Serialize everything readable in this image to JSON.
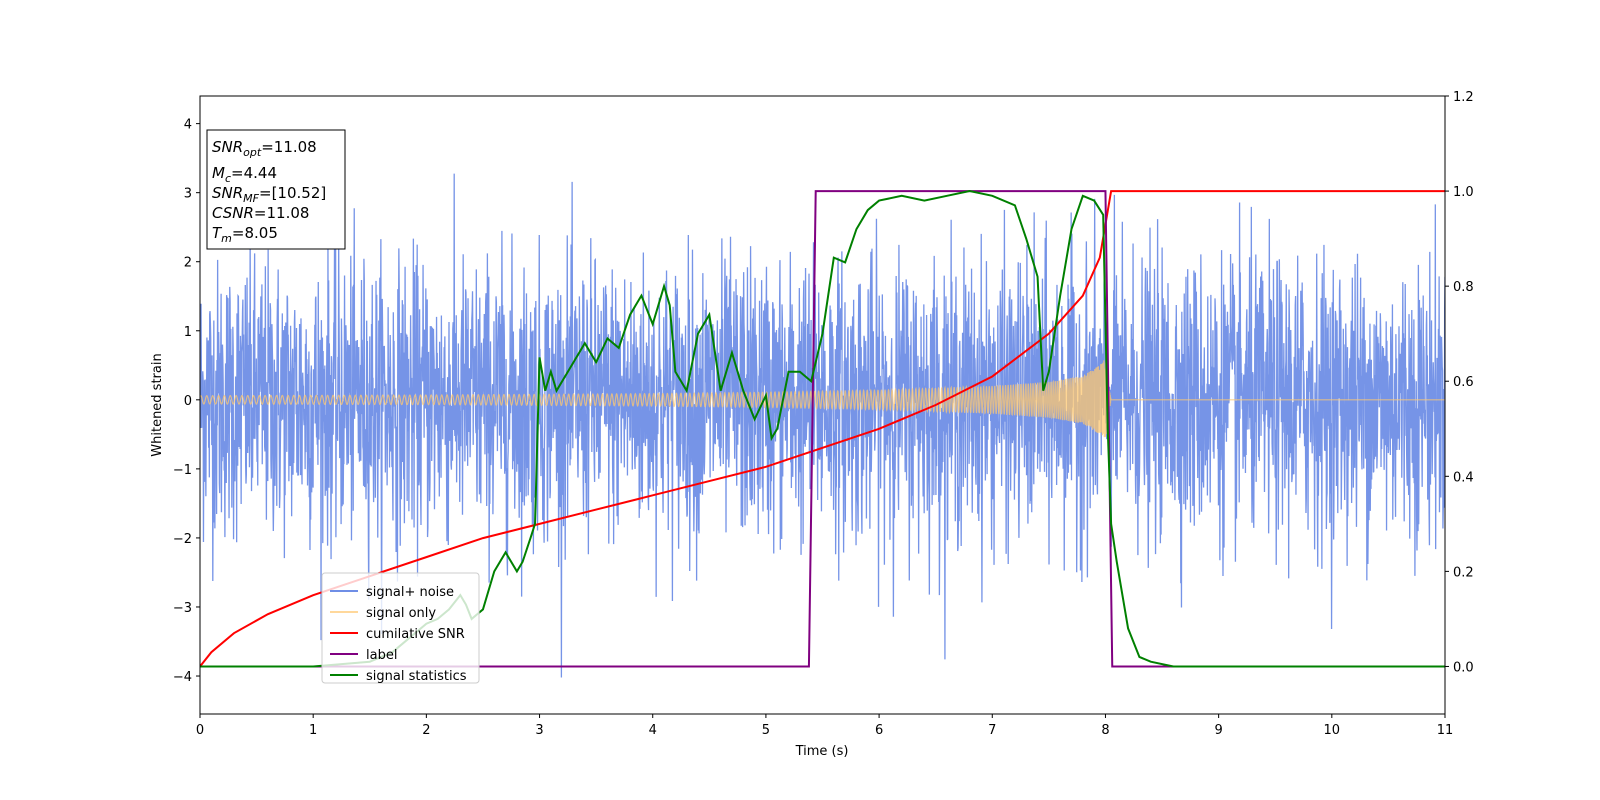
{
  "chart_data": {
    "type": "line",
    "title": "",
    "xlabel": "Time (s)",
    "ylabel": "Whitened strain",
    "y2label": "",
    "xlim": [
      0,
      11
    ],
    "ylim": [
      -4.55,
      4.4
    ],
    "y2lim": [
      -0.1,
      1.2
    ],
    "grid": false,
    "legend_position": "lower-left",
    "x_ticks": [
      0,
      1,
      2,
      3,
      4,
      5,
      6,
      7,
      8,
      9,
      10,
      11
    ],
    "y_ticks": [
      -4,
      -3,
      -2,
      -1,
      0,
      1,
      2,
      3,
      4
    ],
    "y2_ticks": [
      0.0,
      0.2,
      0.4,
      0.6,
      0.8,
      1.0,
      1.2
    ],
    "x_tick_labels": [
      "0",
      "1",
      "2",
      "3",
      "4",
      "5",
      "6",
      "7",
      "8",
      "9",
      "10",
      "11"
    ],
    "y_tick_labels": [
      "−4",
      "−3",
      "−2",
      "−1",
      "0",
      "1",
      "2",
      "3",
      "4"
    ],
    "y2_tick_labels": [
      "0.0",
      "0.2",
      "0.4",
      "0.6",
      "0.8",
      "1.0",
      "1.2"
    ],
    "colors": {
      "noise": "#6f8ee6",
      "signal": "#ffc870",
      "snr": "#ff0000",
      "label": "#800080",
      "stat": "#008000"
    },
    "legend": [
      {
        "key": "noise",
        "label": "signal+ noise"
      },
      {
        "key": "signal",
        "label": "signal only"
      },
      {
        "key": "snr",
        "label": "cumilative SNR"
      },
      {
        "key": "label",
        "label": "label"
      },
      {
        "key": "stat",
        "label": "signal statistics"
      }
    ],
    "annotation": {
      "snr_opt_base": "SNR",
      "snr_opt_sub": "opt",
      "snr_opt_value": "=11.08",
      "mc_base": "M",
      "mc_sub": "c",
      "mc_value": "=4.44",
      "snr_mf_base": "SNR",
      "snr_mf_sub": "MF",
      "snr_mf_value": "=[10.52]",
      "csnr_base": "CSNR",
      "csnr_value": "=11.08",
      "tm_base": "T",
      "tm_sub": "m",
      "tm_value": "=8.05"
    },
    "series": [
      {
        "name": "signal+ noise",
        "axis": "left",
        "description_range": [
          -4.15,
          4.0
        ],
        "noise_sigma": 1.0,
        "x_range": [
          0,
          11
        ]
      },
      {
        "name": "signal only",
        "axis": "left",
        "envelope_x": [
          0,
          1,
          2,
          3,
          4,
          5,
          6,
          7,
          7.5,
          7.8,
          7.95,
          8.0,
          8.02,
          8.05
        ],
        "envelope_y": [
          0.06,
          0.065,
          0.07,
          0.08,
          0.09,
          0.11,
          0.14,
          0.2,
          0.26,
          0.35,
          0.5,
          0.6,
          0.3,
          0.0
        ]
      },
      {
        "name": "cumilative SNR",
        "axis": "right",
        "x": [
          0,
          0.1,
          0.3,
          0.6,
          1.0,
          1.5,
          2.0,
          2.5,
          3.0,
          3.5,
          4.0,
          4.5,
          5.0,
          5.5,
          6.0,
          6.5,
          7.0,
          7.5,
          7.8,
          7.95,
          8.05,
          8.06,
          11
        ],
        "y": [
          0.0,
          0.03,
          0.07,
          0.11,
          0.15,
          0.19,
          0.23,
          0.27,
          0.3,
          0.33,
          0.36,
          0.39,
          0.42,
          0.46,
          0.5,
          0.55,
          0.61,
          0.7,
          0.78,
          0.86,
          1.0,
          1.0,
          1.0
        ]
      },
      {
        "name": "label",
        "axis": "right",
        "x": [
          0,
          5.38,
          5.44,
          8.0,
          8.06,
          11
        ],
        "y": [
          0,
          0,
          1,
          1,
          0,
          0
        ]
      },
      {
        "name": "signal statistics",
        "axis": "right",
        "x": [
          0,
          0.5,
          1.0,
          1.5,
          1.7,
          1.85,
          2.0,
          2.1,
          2.2,
          2.3,
          2.35,
          2.4,
          2.5,
          2.6,
          2.7,
          2.8,
          2.85,
          2.92,
          2.96,
          3.0,
          3.05,
          3.1,
          3.15,
          3.2,
          3.3,
          3.4,
          3.5,
          3.6,
          3.7,
          3.8,
          3.9,
          4.0,
          4.1,
          4.15,
          4.2,
          4.3,
          4.4,
          4.5,
          4.6,
          4.7,
          4.8,
          4.9,
          5.0,
          5.05,
          5.1,
          5.2,
          5.3,
          5.4,
          5.5,
          5.6,
          5.7,
          5.8,
          5.9,
          6.0,
          6.2,
          6.4,
          6.6,
          6.8,
          7.0,
          7.2,
          7.3,
          7.4,
          7.45,
          7.5,
          7.6,
          7.7,
          7.8,
          7.9,
          7.98,
          8.02,
          8.05,
          8.1,
          8.2,
          8.3,
          8.4,
          8.6,
          8.8,
          9.0,
          10.0,
          11.0
        ],
        "y": [
          0.0,
          0.0,
          0.0,
          0.01,
          0.03,
          0.06,
          0.09,
          0.1,
          0.12,
          0.15,
          0.13,
          0.1,
          0.12,
          0.2,
          0.24,
          0.2,
          0.22,
          0.27,
          0.3,
          0.65,
          0.58,
          0.62,
          0.58,
          0.6,
          0.64,
          0.68,
          0.64,
          0.69,
          0.67,
          0.74,
          0.78,
          0.72,
          0.8,
          0.76,
          0.62,
          0.58,
          0.7,
          0.74,
          0.58,
          0.66,
          0.58,
          0.52,
          0.57,
          0.48,
          0.5,
          0.62,
          0.62,
          0.6,
          0.7,
          0.86,
          0.85,
          0.92,
          0.96,
          0.98,
          0.99,
          0.98,
          0.99,
          1.0,
          0.99,
          0.97,
          0.9,
          0.82,
          0.58,
          0.62,
          0.78,
          0.92,
          0.99,
          0.98,
          0.95,
          0.5,
          0.3,
          0.22,
          0.08,
          0.02,
          0.01,
          0.0,
          0.0,
          0.0,
          0.0,
          0.0
        ]
      }
    ]
  }
}
